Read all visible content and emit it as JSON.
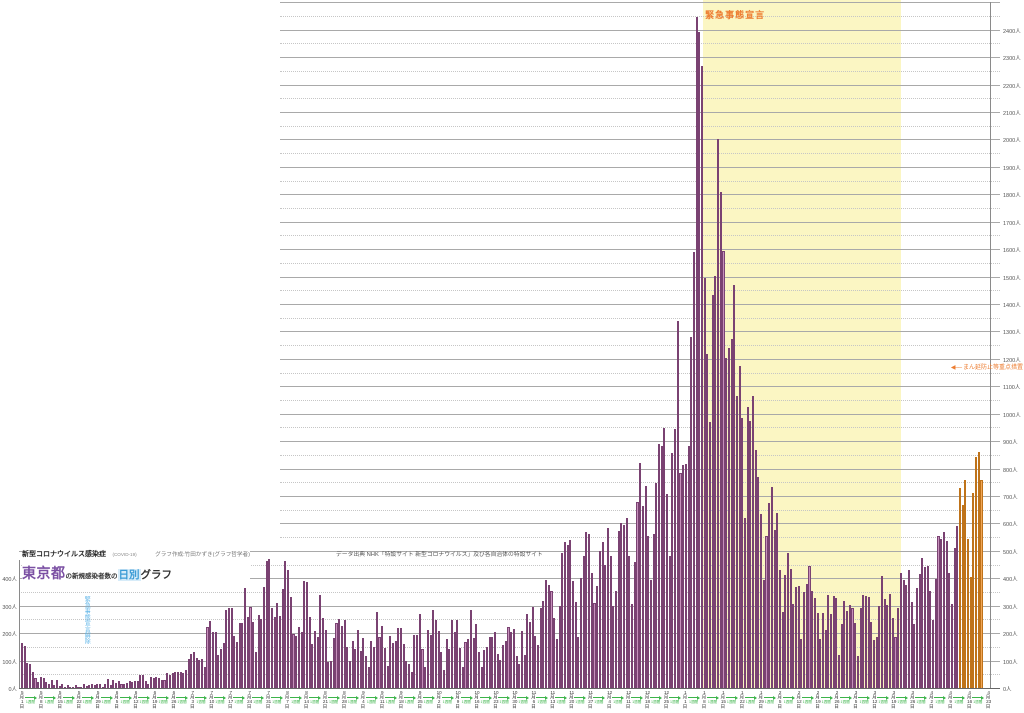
{
  "title": {
    "line1_main": "新型コロナウイルス感染症",
    "line1_sub": "(COVID-19)",
    "credit": "グラフ作成:竹田かずき(グラフ哲学者)",
    "main_bold": "東京都",
    "main_mid": "の新規感染者数の",
    "main_highlight": "日別",
    "main_tail": "グラフ"
  },
  "source": "データ出典 NHK「特設サイト 新型コロナウイルス」及び各自治体の特設サイト",
  "annotations": {
    "emergency_band_label": "緊急事態宣言",
    "emergency_lift_label": "緊急事態宣言解除",
    "manen_arrow": "◀──",
    "manen_label": "まん延防止等重点措置"
  },
  "colors": {
    "bar_fill": "#c690bb",
    "bar_stroke": "#7a4272",
    "bar_orange_fill": "#f1a657",
    "bar_orange_stroke": "#bf731a",
    "band_yellow": "#fbf6c3",
    "annotation_orange": "#ed7d31",
    "annotation_blue": "#5fb5e8",
    "week_green": "#3cb44a",
    "title_purple": "#7b50a3",
    "highlight_blue_text": "#3b9bd5"
  },
  "chart_data": {
    "type": "bar",
    "title": "東京都の新規感染者数の日別グラフ",
    "unit": "人",
    "x_start_date": "2020-05-01",
    "x_end_date": "2021-04-23",
    "x_frequency": "daily",
    "ylim": [
      0,
      2500
    ],
    "y_major_tick": 100,
    "y_minor_tick": 50,
    "left_axis_label_max": 400,
    "right_axis_label_max": 2400,
    "grid": true,
    "week_interval_label": "1週間",
    "week_labels": [
      "5月1日",
      "5月8日",
      "5月15日",
      "5月22日",
      "5月29日",
      "6月5日",
      "6月12日",
      "6月19日",
      "6月26日",
      "7月3日",
      "7月10日",
      "7月17日",
      "7月24日",
      "7月31日",
      "8月7日",
      "8月14日",
      "8月21日",
      "8月28日",
      "9月4日",
      "9月11日",
      "9月18日",
      "9月25日",
      "10月2日",
      "10月9日",
      "10月16日",
      "10月23日",
      "10月30日",
      "11月6日",
      "11月13日",
      "11月20日",
      "11月27日",
      "12月4日",
      "12月11日",
      "12月18日",
      "12月25日",
      "1月1日",
      "1月8日",
      "1月15日",
      "1月22日",
      "1月29日",
      "2月5日",
      "2月12日",
      "2月19日",
      "2月26日",
      "3月5日",
      "3月12日",
      "3月19日",
      "3月26日",
      "4月2日",
      "4月9日",
      "4月16日",
      "4月23日"
    ],
    "highlight_band": {
      "label": "緊急事態宣言",
      "start_date": "2021-01-08",
      "end_date": "2021-03-21",
      "start_index": 252,
      "end_index": 324,
      "color": "#fbf6c3"
    },
    "orange_segment": {
      "label": "まん延防止等重点措置",
      "start_date": "2021-04-15",
      "start_index": 349
    },
    "lift_marker": {
      "label": "緊急事態宣言解除",
      "date": "2020-05-25",
      "index": 24
    },
    "values": [
      165,
      154,
      91,
      87,
      57,
      38,
      23,
      39,
      36,
      22,
      15,
      28,
      10,
      30,
      9,
      14,
      5,
      10,
      5,
      5,
      11,
      3,
      2,
      14,
      8,
      10,
      15,
      11,
      15,
      14,
      5,
      13,
      34,
      12,
      28,
      20,
      26,
      14,
      13,
      18,
      25,
      22,
      25,
      24,
      47,
      48,
      27,
      16,
      41,
      35,
      39,
      35,
      29,
      31,
      55,
      48,
      54,
      57,
      60,
      58,
      54,
      67,
      107,
      124,
      131,
      111,
      102,
      106,
      75,
      224,
      243,
      206,
      206,
      119,
      143,
      165,
      286,
      293,
      290,
      188,
      168,
      237,
      238,
      366,
      260,
      295,
      239,
      131,
      266,
      250,
      367,
      463,
      472,
      292,
      258,
      309,
      263,
      360,
      462,
      429,
      331,
      197,
      188,
      222,
      206,
      389,
      385,
      260,
      161,
      207,
      186,
      339,
      256,
      212,
      95,
      98,
      182,
      236,
      250,
      226,
      247,
      148,
      100,
      170,
      141,
      211,
      136,
      181,
      116,
      77,
      170,
      149,
      276,
      187,
      226,
      146,
      80,
      191,
      163,
      171,
      220,
      218,
      162,
      98,
      88,
      59,
      195,
      195,
      270,
      144,
      78,
      212,
      194,
      284,
      248,
      207,
      132,
      66,
      177,
      142,
      248,
      203,
      249,
      146,
      78,
      166,
      177,
      284,
      184,
      235,
      132,
      78,
      139,
      150,
      185,
      186,
      203,
      124,
      102,
      158,
      171,
      221,
      204,
      215,
      116,
      87,
      209,
      122,
      269,
      242,
      294,
      189,
      157,
      293,
      317,
      393,
      374,
      352,
      255,
      180,
      298,
      493,
      534,
      522,
      539,
      391,
      314,
      186,
      401,
      481,
      570,
      561,
      418,
      311,
      372,
      500,
      533,
      449,
      584,
      480,
      299,
      352,
      572,
      602,
      595,
      621,
      480,
      305,
      460,
      678,
      822,
      664,
      736,
      556,
      392,
      563,
      748,
      888,
      884,
      949,
      708,
      481,
      856,
      944,
      1337,
      783,
      814,
      816,
      884,
      1278,
      1591,
      2447,
      2392,
      2268,
      1494,
      1219,
      970,
      1433,
      1502,
      2001,
      1809,
      1592,
      1204,
      1240,
      1274,
      1471,
      1064,
      1175,
      986,
      618,
      1026,
      973,
      1065,
      868,
      769,
      633,
      393,
      556,
      676,
      734,
      577,
      639,
      429,
      276,
      412,
      491,
      434,
      307,
      369,
      371,
      178,
      350,
      378,
      445,
      353,
      327,
      272,
      178,
      275,
      213,
      340,
      270,
      337,
      329,
      121,
      232,
      316,
      279,
      301,
      293,
      237,
      116,
      290,
      340,
      335,
      330,
      239,
      175,
      187,
      300,
      409,
      323,
      303,
      342,
      256,
      187,
      290,
      420,
      394,
      376,
      430,
      313,
      234,
      364,
      414,
      475,
      440,
      446,
      355,
      249,
      399,
      555,
      545,
      570,
      537,
      421,
      306,
      510,
      591,
      729,
      667,
      759,
      543,
      405,
      711,
      843,
      861,
      759
    ]
  }
}
